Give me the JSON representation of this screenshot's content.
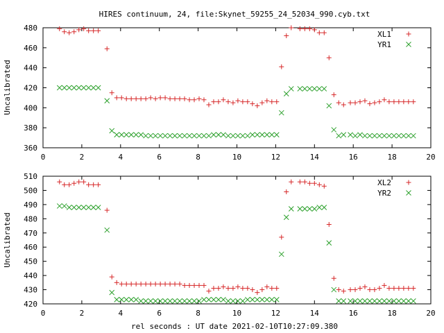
{
  "chart_data": [
    {
      "type": "scatter",
      "title": "HIRES continuum, 24, file:Skynet_59255_24_52034_990.cyb.txt",
      "xlabel": "",
      "ylabel": "Uncalibrated",
      "xlim": [
        0,
        20
      ],
      "ylim": [
        360,
        480
      ],
      "xticks": [
        0,
        2,
        4,
        6,
        8,
        10,
        12,
        14,
        16,
        18,
        20
      ],
      "yticks": [
        360,
        380,
        400,
        420,
        440,
        460,
        480
      ],
      "grid": false,
      "legend": "top-right",
      "series": [
        {
          "name": "XL1",
          "marker": "plus",
          "color": "#d62728",
          "x": [
            0.85,
            1.1,
            1.35,
            1.6,
            1.85,
            2.1,
            2.35,
            2.6,
            2.85,
            3.3,
            3.55,
            3.8,
            4.05,
            4.3,
            4.55,
            4.8,
            5.05,
            5.3,
            5.55,
            5.8,
            6.05,
            6.3,
            6.55,
            6.8,
            7.05,
            7.3,
            7.55,
            7.8,
            8.05,
            8.3,
            8.55,
            8.8,
            9.05,
            9.3,
            9.55,
            9.8,
            10.05,
            10.3,
            10.55,
            10.8,
            11.05,
            11.3,
            11.55,
            11.8,
            12.05,
            12.3,
            12.55,
            12.8,
            13.25,
            13.5,
            13.75,
            14.0,
            14.25,
            14.5,
            14.75,
            15.0,
            15.25,
            15.5,
            15.85,
            16.1,
            16.35,
            16.6,
            16.85,
            17.1,
            17.35,
            17.6,
            17.85,
            18.1,
            18.35,
            18.6,
            18.85,
            19.1
          ],
          "y": [
            479,
            476,
            475,
            476,
            478,
            479,
            477,
            477,
            477,
            459,
            415,
            410,
            410,
            409,
            409,
            409,
            409,
            409,
            410,
            409,
            410,
            410,
            409,
            409,
            409,
            409,
            408,
            408,
            409,
            408,
            403,
            406,
            406,
            408,
            406,
            405,
            407,
            406,
            406,
            404,
            402,
            405,
            407,
            406,
            406,
            441,
            472,
            480,
            479,
            479,
            479,
            478,
            475,
            475,
            450,
            413,
            405,
            403,
            405,
            405,
            406,
            407,
            404,
            405,
            406,
            408,
            406,
            406,
            406,
            406,
            406,
            406
          ]
        },
        {
          "name": "YR1",
          "marker": "cross",
          "color": "#2ca02c",
          "x": [
            0.85,
            1.1,
            1.35,
            1.6,
            1.85,
            2.1,
            2.35,
            2.6,
            2.85,
            3.3,
            3.55,
            3.8,
            4.05,
            4.3,
            4.55,
            4.8,
            5.05,
            5.3,
            5.55,
            5.8,
            6.05,
            6.3,
            6.55,
            6.8,
            7.05,
            7.3,
            7.55,
            7.8,
            8.05,
            8.3,
            8.55,
            8.8,
            9.05,
            9.3,
            9.55,
            9.8,
            10.05,
            10.3,
            10.55,
            10.8,
            11.05,
            11.3,
            11.55,
            11.8,
            12.05,
            12.3,
            12.55,
            12.8,
            13.25,
            13.5,
            13.75,
            14.0,
            14.25,
            14.5,
            14.75,
            15.0,
            15.25,
            15.5,
            15.85,
            16.1,
            16.35,
            16.6,
            16.85,
            17.1,
            17.35,
            17.6,
            17.85,
            18.1,
            18.35,
            18.6,
            18.85,
            19.1
          ],
          "y": [
            420,
            420,
            420,
            420,
            420,
            420,
            420,
            420,
            420,
            407,
            377,
            373,
            373,
            373,
            373,
            373,
            373,
            372,
            372,
            372,
            372,
            372,
            372,
            372,
            372,
            372,
            372,
            372,
            372,
            372,
            372,
            373,
            373,
            373,
            372,
            372,
            372,
            372,
            372,
            373,
            373,
            373,
            373,
            373,
            373,
            395,
            414,
            419,
            419,
            419,
            419,
            419,
            419,
            419,
            402,
            378,
            372,
            373,
            373,
            372,
            373,
            372,
            372,
            372,
            372,
            372,
            372,
            372,
            372,
            372,
            372,
            372
          ]
        }
      ]
    },
    {
      "type": "scatter",
      "title": "",
      "xlabel": "rel seconds : UT date 2021-02-10T10:27:09.380",
      "ylabel": "Uncalibrated",
      "xlim": [
        0,
        20
      ],
      "ylim": [
        420,
        510
      ],
      "xticks": [
        0,
        2,
        4,
        6,
        8,
        10,
        12,
        14,
        16,
        18,
        20
      ],
      "yticks": [
        420,
        430,
        440,
        450,
        460,
        470,
        480,
        490,
        500,
        510
      ],
      "grid": false,
      "legend": "top-right",
      "series": [
        {
          "name": "XL2",
          "marker": "plus",
          "color": "#d62728",
          "x": [
            0.85,
            1.1,
            1.35,
            1.6,
            1.85,
            2.1,
            2.35,
            2.6,
            2.85,
            3.3,
            3.55,
            3.8,
            4.05,
            4.3,
            4.55,
            4.8,
            5.05,
            5.3,
            5.55,
            5.8,
            6.05,
            6.3,
            6.55,
            6.8,
            7.05,
            7.3,
            7.55,
            7.8,
            8.05,
            8.3,
            8.55,
            8.8,
            9.05,
            9.3,
            9.55,
            9.8,
            10.05,
            10.3,
            10.55,
            10.8,
            11.05,
            11.3,
            11.55,
            11.8,
            12.05,
            12.3,
            12.55,
            12.8,
            13.25,
            13.5,
            13.75,
            14.0,
            14.25,
            14.5,
            14.75,
            15.0,
            15.25,
            15.5,
            15.85,
            16.1,
            16.35,
            16.6,
            16.85,
            17.1,
            17.35,
            17.6,
            17.85,
            18.1,
            18.35,
            18.6,
            18.85,
            19.1
          ],
          "y": [
            506,
            504,
            504,
            505,
            506,
            506,
            504,
            504,
            504,
            486,
            439,
            435,
            434,
            434,
            434,
            434,
            434,
            434,
            434,
            434,
            434,
            434,
            434,
            434,
            434,
            433,
            433,
            433,
            433,
            433,
            429,
            431,
            431,
            432,
            431,
            431,
            432,
            431,
            431,
            430,
            428,
            430,
            432,
            431,
            431,
            467,
            499,
            506,
            506,
            506,
            505,
            505,
            504,
            503,
            476,
            438,
            430,
            429,
            430,
            430,
            431,
            432,
            430,
            430,
            431,
            433,
            431,
            431,
            431,
            431,
            431,
            431
          ]
        },
        {
          "name": "YR2",
          "marker": "cross",
          "color": "#2ca02c",
          "x": [
            0.85,
            1.1,
            1.35,
            1.6,
            1.85,
            2.1,
            2.35,
            2.6,
            2.85,
            3.3,
            3.55,
            3.8,
            4.05,
            4.3,
            4.55,
            4.8,
            5.05,
            5.3,
            5.55,
            5.8,
            6.05,
            6.3,
            6.55,
            6.8,
            7.05,
            7.3,
            7.55,
            7.8,
            8.05,
            8.3,
            8.55,
            8.8,
            9.05,
            9.3,
            9.55,
            9.8,
            10.05,
            10.3,
            10.55,
            10.8,
            11.05,
            11.3,
            11.55,
            11.8,
            12.05,
            12.3,
            12.55,
            12.8,
            13.25,
            13.5,
            13.75,
            14.0,
            14.25,
            14.5,
            14.75,
            15.0,
            15.25,
            15.5,
            15.85,
            16.1,
            16.35,
            16.6,
            16.85,
            17.1,
            17.35,
            17.6,
            17.85,
            18.1,
            18.35,
            18.6,
            18.85,
            19.1
          ],
          "y": [
            489,
            489,
            488,
            488,
            488,
            488,
            488,
            488,
            488,
            472,
            428,
            423,
            423,
            423,
            423,
            423,
            422,
            422,
            422,
            422,
            422,
            422,
            422,
            422,
            422,
            422,
            422,
            422,
            422,
            423,
            423,
            423,
            423,
            423,
            422,
            422,
            422,
            422,
            423,
            423,
            423,
            423,
            423,
            423,
            423,
            455,
            481,
            487,
            487,
            487,
            487,
            487,
            488,
            488,
            463,
            430,
            422,
            422,
            422,
            422,
            422,
            422,
            422,
            422,
            422,
            422,
            422,
            422,
            422,
            422,
            422,
            422
          ]
        }
      ]
    }
  ]
}
